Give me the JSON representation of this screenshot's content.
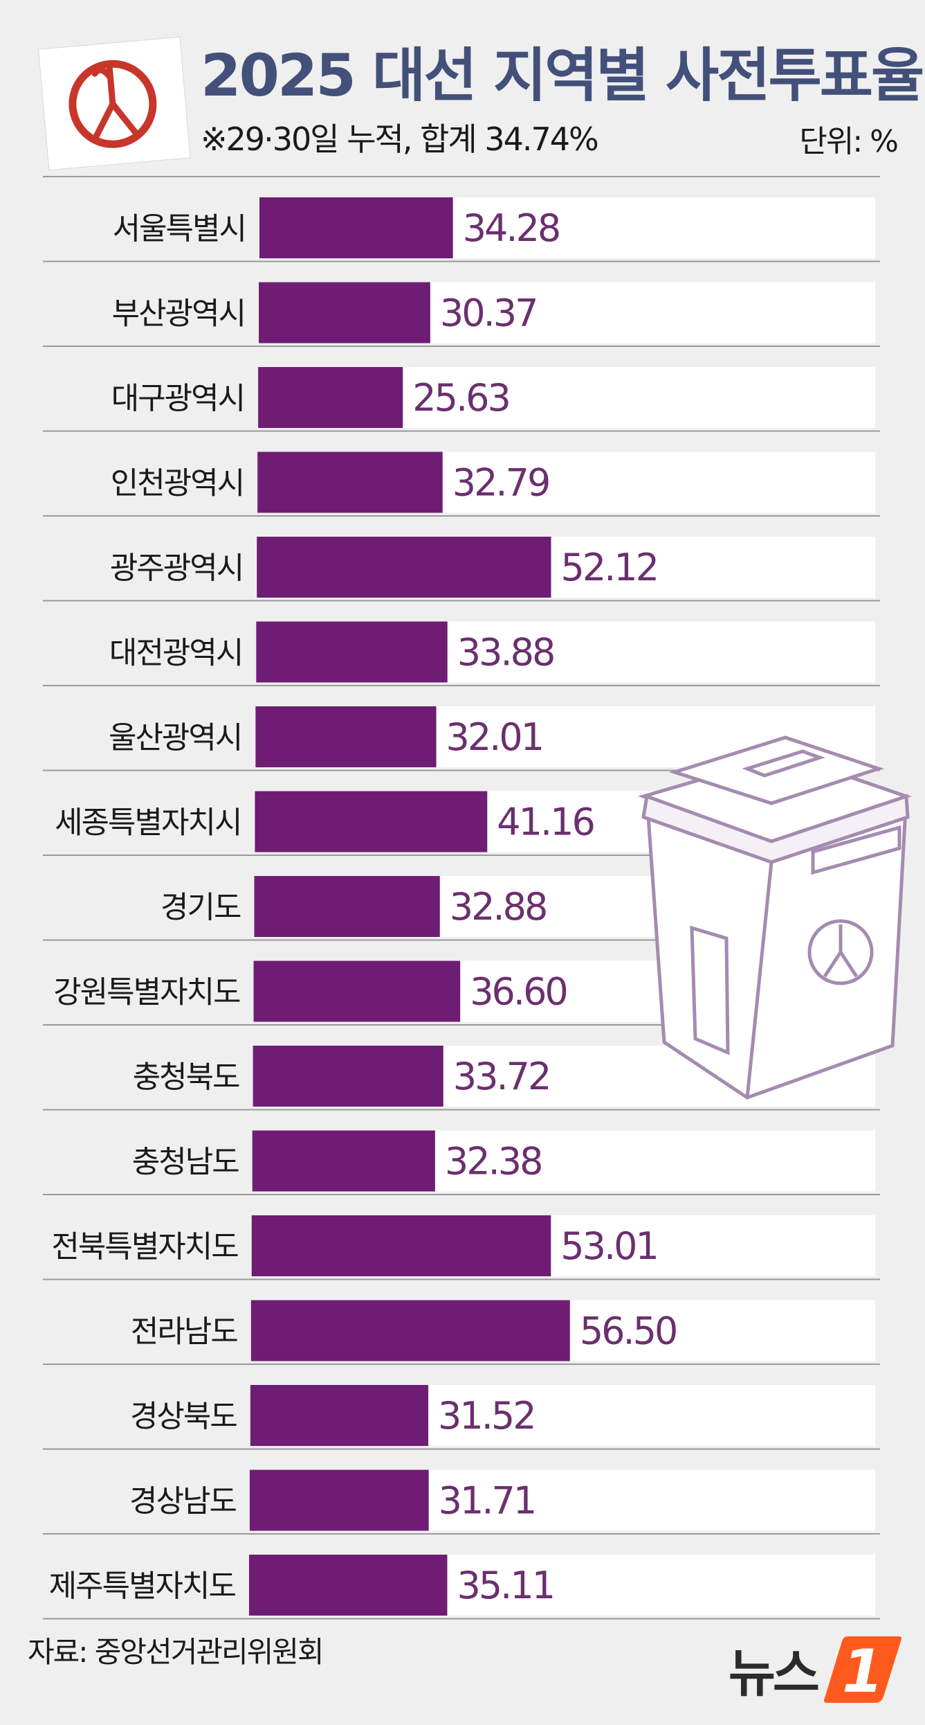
{
  "header": {
    "title": "2025 대선 지역별 사전투표율",
    "subtitle": "※29·30일 누적, 합계 34.74%",
    "unit": "단위: %"
  },
  "footer": {
    "source": "자료: 중앙선거관리위원회",
    "logo_text": "뉴스",
    "logo_badge": "1"
  },
  "colors": {
    "bar": "#6f1c74",
    "value_label": "#6b2f6e",
    "title": "#43507a",
    "row_background": "#ffffff",
    "logo_orange": "#ff5a1e"
  },
  "icons": [
    "ballot-stamp-icon",
    "ballot-box-illustration",
    "news1-logo"
  ],
  "chart_data": {
    "type": "bar",
    "orientation": "horizontal",
    "title": "2025 대선 지역별 사전투표율",
    "subtitle": "※29·30일 누적, 합계 34.74%",
    "unit": "%",
    "categories": [
      "서울특별시",
      "부산광역시",
      "대구광역시",
      "인천광역시",
      "광주광역시",
      "대전광역시",
      "울산광역시",
      "세종특별자치시",
      "경기도",
      "강원특별자치도",
      "충청북도",
      "충청남도",
      "전북특별자치도",
      "전라남도",
      "경상북도",
      "경상남도",
      "제주특별자치도"
    ],
    "values": [
      34.28,
      30.37,
      25.63,
      32.79,
      52.12,
      33.88,
      32.01,
      41.16,
      32.88,
      36.6,
      33.72,
      32.38,
      53.01,
      56.5,
      31.52,
      31.71,
      35.11
    ],
    "value_labels": [
      "34.28",
      "30.37",
      "25.63",
      "32.79",
      "52.12",
      "33.88",
      "32.01",
      "41.16",
      "32.88",
      "36.60",
      "33.72",
      "32.38",
      "53.01",
      "56.50",
      "31.52",
      "31.71",
      "35.11"
    ],
    "xlim": [
      0,
      100
    ],
    "grid": false,
    "legend": "none"
  }
}
